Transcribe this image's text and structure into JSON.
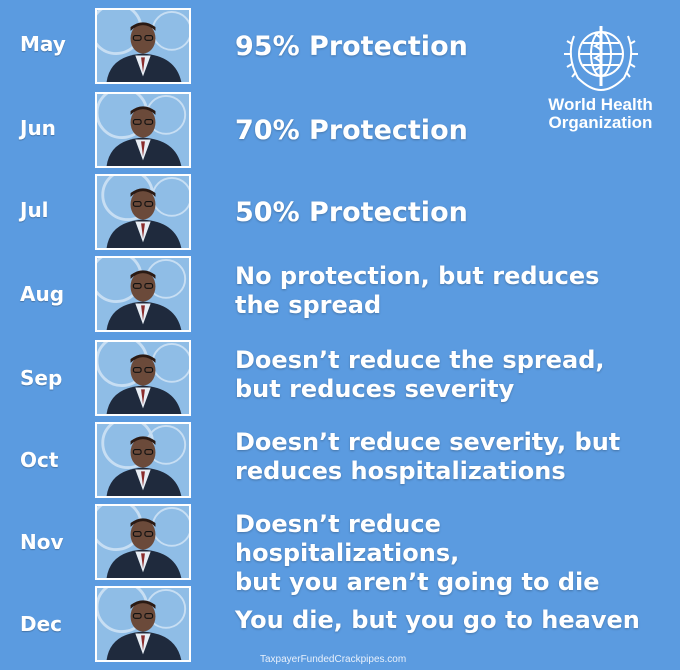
{
  "logo": {
    "emblem_icon": "who-emblem-icon",
    "name": "World Health\nOrganization"
  },
  "rows": [
    {
      "month": "May",
      "statement": "95% Protection"
    },
    {
      "month": "Jun",
      "statement": "70% Protection"
    },
    {
      "month": "Jul",
      "statement": "50% Protection"
    },
    {
      "month": "Aug",
      "statement": "No protection, but reduces\nthe spread"
    },
    {
      "month": "Sep",
      "statement": "Doesn’t reduce the spread,\nbut reduces severity"
    },
    {
      "month": "Oct",
      "statement": "Doesn’t reduce severity, but\nreduces hospitalizations"
    },
    {
      "month": "Nov",
      "statement": "Doesn’t reduce hospitalizations,\nbut you aren’t going to die"
    },
    {
      "month": "Dec",
      "statement": "You die, but you go to heaven"
    }
  ],
  "credit": "TaxpayerFundedCrackpipes.com",
  "colors": {
    "background": "#5b9be0",
    "text": "#ffffff"
  }
}
